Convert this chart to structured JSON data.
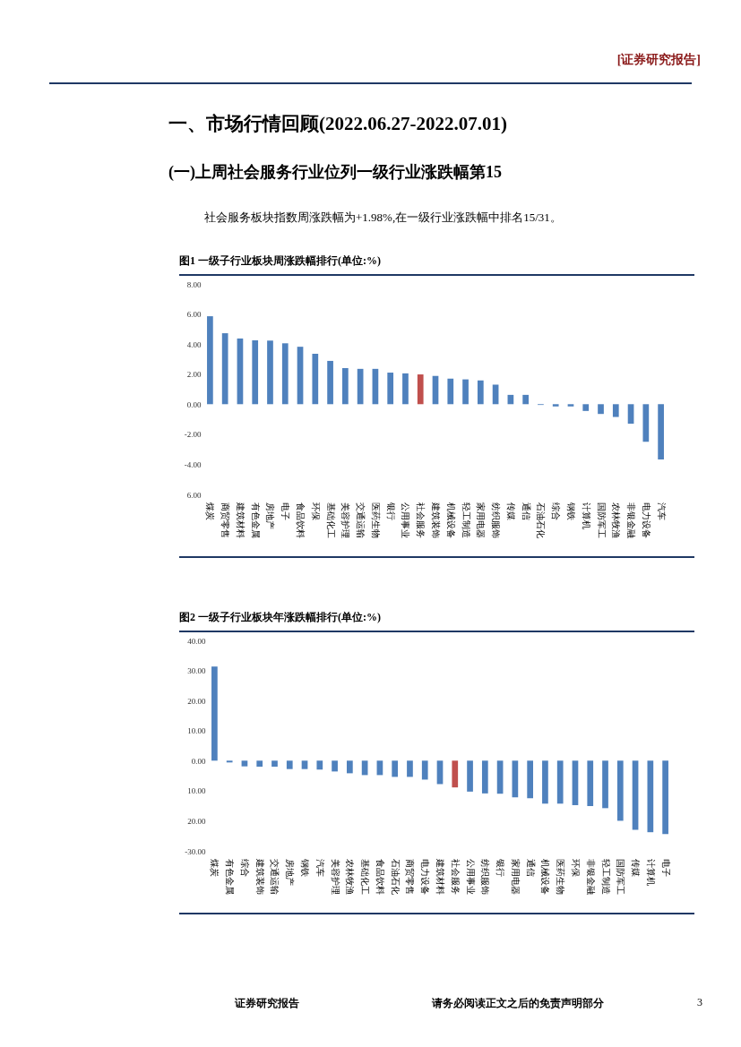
{
  "chart_data": [
    {
      "type": "bar",
      "title": "图1 一级子行业板块周涨跌幅排行(单位:%)",
      "annotations": [
        "一、市场行情回顾(2022.06.27-2022.07.01)",
        "(一)上周社会服务行业位列一级行业涨跌幅第15",
        "社会服务板块指数周涨跌幅为+1.98%,在一级行业涨跌幅中排名15/31。"
      ],
      "categories": [
        "煤炭",
        "商贸零售",
        "建筑材料",
        "有色金属",
        "房地产",
        "电子",
        "食品饮料",
        "环保",
        "基础化工",
        "美容护理",
        "交通运输",
        "医药生物",
        "银行",
        "公用事业",
        "社会服务",
        "建筑装饰",
        "机械设备",
        "轻工制造",
        "家用电器",
        "纺织服饰",
        "传媒",
        "通信",
        "石油石化",
        "综合",
        "钢铁",
        "计算机",
        "国防军工",
        "农林牧渔",
        "非银金融",
        "电力设备",
        "汽车"
      ],
      "values": [
        5.85,
        4.72,
        4.37,
        4.25,
        4.23,
        4.05,
        3.82,
        3.35,
        2.88,
        2.4,
        2.35,
        2.35,
        2.1,
        2.05,
        1.98,
        1.88,
        1.7,
        1.65,
        1.58,
        1.3,
        0.62,
        0.62,
        -0.05,
        -0.15,
        -0.15,
        -0.45,
        -0.65,
        -0.85,
        -1.3,
        -2.5,
        -3.68
      ],
      "colors": [
        "#4f81bd",
        "#4f81bd",
        "#4f81bd",
        "#4f81bd",
        "#4f81bd",
        "#4f81bd",
        "#4f81bd",
        "#4f81bd",
        "#4f81bd",
        "#4f81bd",
        "#4f81bd",
        "#4f81bd",
        "#4f81bd",
        "#4f81bd",
        "#c0504d",
        "#4f81bd",
        "#4f81bd",
        "#4f81bd",
        "#4f81bd",
        "#4f81bd",
        "#4f81bd",
        "#4f81bd",
        "#4f81bd",
        "#4f81bd",
        "#4f81bd",
        "#4f81bd",
        "#4f81bd",
        "#4f81bd",
        "#4f81bd",
        "#4f81bd",
        "#4f81bd"
      ],
      "ylim": [
        -6,
        8
      ],
      "yticks": [
        {
          "value": -6,
          "label": "6.00"
        },
        {
          "value": -4,
          "label": "-4.00"
        },
        {
          "value": -2,
          "label": "-2.00"
        },
        {
          "value": 0,
          "label": "0.00"
        },
        {
          "value": 2,
          "label": "2.00"
        },
        {
          "value": 4,
          "label": "4.00"
        },
        {
          "value": 6,
          "label": "6.00"
        },
        {
          "value": 8,
          "label": "8.00"
        }
      ]
    },
    {
      "type": "bar",
      "title": "图2 一级子行业板块年涨跌幅排行(单位:%)",
      "annotations": [
        "[证券研究报告]",
        "证券研究报告",
        "请务必阅读正文之后的免责声明部分",
        "3"
      ],
      "categories": [
        "煤炭",
        "有色金属",
        "综合",
        "建筑装饰",
        "交通运输",
        "房地产",
        "钢铁",
        "汽车",
        "美容护理",
        "农林牧渔",
        "基础化工",
        "食品饮料",
        "石油石化",
        "商贸零售",
        "电力设备",
        "建筑材料",
        "社会服务",
        "公用事业",
        "纺织服饰",
        "银行",
        "家用电器",
        "通信",
        "机械设备",
        "医药生物",
        "环保",
        "非银金融",
        "轻工制造",
        "国防军工",
        "传媒",
        "计算机",
        "电子"
      ],
      "values": [
        31.3,
        -0.6,
        -1.9,
        -2.0,
        -2.0,
        -2.8,
        -2.8,
        -3.0,
        -3.6,
        -4.2,
        -4.8,
        -4.8,
        -5.4,
        -5.4,
        -6.3,
        -7.8,
        -8.9,
        -10.3,
        -10.9,
        -11.0,
        -12.2,
        -12.5,
        -14.3,
        -14.3,
        -14.8,
        -15.1,
        -15.8,
        -20.0,
        -23.0,
        -23.8,
        -24.4
      ],
      "colors": [
        "#4f81bd",
        "#4f81bd",
        "#4f81bd",
        "#4f81bd",
        "#4f81bd",
        "#4f81bd",
        "#4f81bd",
        "#4f81bd",
        "#4f81bd",
        "#4f81bd",
        "#4f81bd",
        "#4f81bd",
        "#4f81bd",
        "#4f81bd",
        "#4f81bd",
        "#4f81bd",
        "#c0504d",
        "#4f81bd",
        "#4f81bd",
        "#4f81bd",
        "#4f81bd",
        "#4f81bd",
        "#4f81bd",
        "#4f81bd",
        "#4f81bd",
        "#4f81bd",
        "#4f81bd",
        "#4f81bd",
        "#4f81bd",
        "#4f81bd",
        "#4f81bd"
      ],
      "ylim": [
        -30,
        40
      ],
      "yticks": [
        {
          "value": -30,
          "label": "-30.00"
        },
        {
          "value": -20,
          "label": "20.00"
        },
        {
          "value": -10,
          "label": "10.00"
        },
        {
          "value": 0,
          "label": "0.00"
        },
        {
          "value": 10,
          "label": "10.00"
        },
        {
          "value": 20,
          "label": "20.00"
        },
        {
          "value": 30,
          "label": "30.00"
        },
        {
          "value": 40,
          "label": "40.00"
        }
      ]
    }
  ]
}
